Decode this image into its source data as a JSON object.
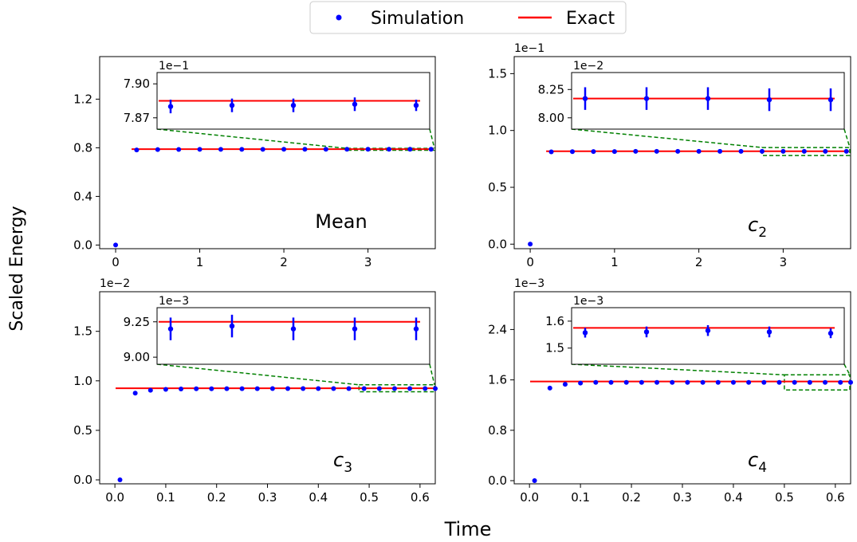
{
  "figure": {
    "xlabel": "Time",
    "ylabel": "Scaled Energy",
    "legend": {
      "placement": "top-center",
      "entries": [
        {
          "label": "Simulation",
          "marker": "dot",
          "color": "#0000ff"
        },
        {
          "label": "Exact",
          "marker": "line",
          "color": "#ff0000"
        }
      ]
    },
    "colors": {
      "simulation": "#0000ff",
      "exact": "#ff0000",
      "zoom_box": "#008000"
    }
  },
  "chart_data": [
    {
      "type": "scatter",
      "panel": "top-left",
      "label": "Mean",
      "label_style": "text",
      "label_sub": "",
      "offset_text": "",
      "xlim": [
        -0.19,
        3.8
      ],
      "ylim": [
        -0.03,
        1.55
      ],
      "xticks": [
        0,
        1,
        2,
        3
      ],
      "xtick_labels": [
        "0",
        "1",
        "2",
        "3"
      ],
      "yticks": [
        0,
        0.4,
        0.8,
        1.2
      ],
      "ytick_labels": [
        "0.0",
        "0.4",
        "0.8",
        "1.2"
      ],
      "exact": 0.7885,
      "series": [
        {
          "name": "Simulation",
          "x": [
            0,
            0.25,
            0.5,
            0.75,
            1.0,
            1.25,
            1.5,
            1.75,
            2.0,
            2.25,
            2.5,
            2.75,
            3.0,
            3.25,
            3.5,
            3.75
          ],
          "y": [
            0.0,
            0.782,
            0.785,
            0.786,
            0.787,
            0.787,
            0.787,
            0.787,
            0.788,
            0.788,
            0.788,
            0.788,
            0.788,
            0.788,
            0.788,
            0.788
          ]
        },
        {
          "name": "Exact",
          "x": [
            0,
            3.8
          ],
          "y": [
            0.7885,
            0.7885
          ]
        }
      ],
      "zoom_region": {
        "x": [
          2.75,
          3.8
        ],
        "y": [
          0.78,
          0.795
        ]
      },
      "inset": {
        "offset_text": "1e−1",
        "ylim": [
          7.86,
          7.91
        ],
        "yticks": [
          7.87,
          7.9
        ],
        "ytick_labels": [
          "7.87",
          "7.90"
        ],
        "exact": 7.885,
        "points": [
          {
            "y": 7.88,
            "err": 0.006
          },
          {
            "y": 7.881,
            "err": 0.006
          },
          {
            "y": 7.881,
            "err": 0.006
          },
          {
            "y": 7.882,
            "err": 0.006
          },
          {
            "y": 7.881,
            "err": 0.005
          }
        ]
      }
    },
    {
      "type": "scatter",
      "panel": "top-right",
      "label": "c",
      "label_style": "math",
      "label_sub": "2",
      "offset_text": "1e−1",
      "xlim": [
        -0.19,
        3.8
      ],
      "ylim": [
        -0.04,
        1.65
      ],
      "xticks": [
        0,
        1,
        2,
        3
      ],
      "xtick_labels": [
        "0",
        "1",
        "2",
        "3"
      ],
      "yticks": [
        0,
        0.5,
        1.0,
        1.5
      ],
      "ytick_labels": [
        "0.0",
        "0.5",
        "1.0",
        "1.5"
      ],
      "exact": 0.817,
      "series": [
        {
          "name": "Simulation",
          "x": [
            0,
            0.25,
            0.5,
            0.75,
            1.0,
            1.25,
            1.5,
            1.75,
            2.0,
            2.25,
            2.5,
            2.75,
            3.0,
            3.25,
            3.5,
            3.75
          ],
          "y": [
            0.0,
            0.812,
            0.814,
            0.815,
            0.815,
            0.816,
            0.816,
            0.816,
            0.816,
            0.816,
            0.816,
            0.816,
            0.816,
            0.816,
            0.816,
            0.816
          ]
        },
        {
          "name": "Exact",
          "x": [
            0,
            3.8
          ],
          "y": [
            0.817,
            0.817
          ]
        }
      ],
      "zoom_region": {
        "x": [
          2.75,
          3.8
        ],
        "y": [
          0.78,
          0.85
        ]
      },
      "inset": {
        "offset_text": "1e−2",
        "ylim": [
          7.9,
          8.4
        ],
        "yticks": [
          8.0,
          8.25
        ],
        "ytick_labels": [
          "8.00",
          "8.25"
        ],
        "exact": 8.17,
        "points": [
          {
            "y": 8.17,
            "err": 0.1
          },
          {
            "y": 8.17,
            "err": 0.1
          },
          {
            "y": 8.17,
            "err": 0.1
          },
          {
            "y": 8.16,
            "err": 0.1
          },
          {
            "y": 8.16,
            "err": 0.1
          }
        ]
      }
    },
    {
      "type": "scatter",
      "panel": "bottom-left",
      "label": "c",
      "label_style": "math",
      "label_sub": "3",
      "offset_text": "1e−2",
      "xlim": [
        -0.03,
        0.63
      ],
      "ylim": [
        -0.04,
        1.9
      ],
      "xticks": [
        0.0,
        0.1,
        0.2,
        0.3,
        0.4,
        0.5,
        0.6
      ],
      "xtick_labels": [
        "0.0",
        "0.1",
        "0.2",
        "0.3",
        "0.4",
        "0.5",
        "0.6"
      ],
      "yticks": [
        0,
        0.5,
        1.0,
        1.5
      ],
      "ytick_labels": [
        "0.0",
        "0.5",
        "1.0",
        "1.5"
      ],
      "exact": 0.925,
      "series": [
        {
          "name": "Simulation",
          "x": [
            0.01,
            0.04,
            0.07,
            0.1,
            0.13,
            0.16,
            0.19,
            0.22,
            0.25,
            0.28,
            0.31,
            0.34,
            0.37,
            0.4,
            0.43,
            0.46,
            0.49,
            0.52,
            0.55,
            0.58,
            0.61,
            0.63
          ],
          "y": [
            0.0,
            0.876,
            0.905,
            0.914,
            0.918,
            0.92,
            0.92,
            0.921,
            0.921,
            0.921,
            0.922,
            0.922,
            0.922,
            0.922,
            0.922,
            0.922,
            0.922,
            0.922,
            0.922,
            0.922,
            0.922,
            0.922
          ]
        },
        {
          "name": "Exact",
          "x": [
            -0.03,
            0.63
          ],
          "y": [
            0.925,
            0.925
          ]
        }
      ],
      "zoom_region": {
        "x": [
          0.48,
          0.63
        ],
        "y": [
          0.89,
          0.96
        ]
      },
      "inset": {
        "offset_text": "1e−3",
        "ylim": [
          8.95,
          9.35
        ],
        "yticks": [
          9.0,
          9.25
        ],
        "ytick_labels": [
          "9.00",
          "9.25"
        ],
        "exact": 9.25,
        "points": [
          {
            "y": 9.2,
            "err": 0.08
          },
          {
            "y": 9.22,
            "err": 0.08
          },
          {
            "y": 9.2,
            "err": 0.08
          },
          {
            "y": 9.2,
            "err": 0.08
          },
          {
            "y": 9.2,
            "err": 0.08
          }
        ]
      }
    },
    {
      "type": "scatter",
      "panel": "bottom-right",
      "label": "c",
      "label_style": "math",
      "label_sub": "4",
      "offset_text": "1e−3",
      "xlim": [
        -0.03,
        0.63
      ],
      "ylim": [
        -0.05,
        3.0
      ],
      "xticks": [
        0.0,
        0.1,
        0.2,
        0.3,
        0.4,
        0.5,
        0.6
      ],
      "xtick_labels": [
        "0.0",
        "0.1",
        "0.2",
        "0.3",
        "0.4",
        "0.5",
        "0.6"
      ],
      "yticks": [
        0,
        0.8,
        1.6,
        2.4
      ],
      "ytick_labels": [
        "0.0",
        "0.8",
        "1.6",
        "2.4"
      ],
      "exact": 1.575,
      "series": [
        {
          "name": "Simulation",
          "x": [
            0.01,
            0.04,
            0.07,
            0.1,
            0.13,
            0.16,
            0.19,
            0.22,
            0.25,
            0.28,
            0.31,
            0.34,
            0.37,
            0.4,
            0.43,
            0.46,
            0.49,
            0.52,
            0.55,
            0.58,
            0.61,
            0.63
          ],
          "y": [
            0.0,
            1.47,
            1.53,
            1.55,
            1.56,
            1.56,
            1.56,
            1.56,
            1.56,
            1.56,
            1.56,
            1.56,
            1.56,
            1.56,
            1.56,
            1.56,
            1.56,
            1.56,
            1.56,
            1.56,
            1.56,
            1.56
          ]
        },
        {
          "name": "Exact",
          "x": [
            -0.03,
            0.63
          ],
          "y": [
            1.575,
            1.575
          ]
        }
      ],
      "zoom_region": {
        "x": [
          0.5,
          0.63
        ],
        "y": [
          1.44,
          1.68
        ]
      },
      "inset": {
        "offset_text": "1e−3",
        "ylim": [
          1.44,
          1.65
        ],
        "yticks": [
          1.5,
          1.6
        ],
        "ytick_labels": [
          "1.5",
          "1.6"
        ],
        "exact": 1.575,
        "points": [
          {
            "y": 1.557,
            "err": 0.018
          },
          {
            "y": 1.56,
            "err": 0.02
          },
          {
            "y": 1.565,
            "err": 0.02
          },
          {
            "y": 1.56,
            "err": 0.02
          },
          {
            "y": 1.555,
            "err": 0.018
          }
        ]
      }
    }
  ]
}
